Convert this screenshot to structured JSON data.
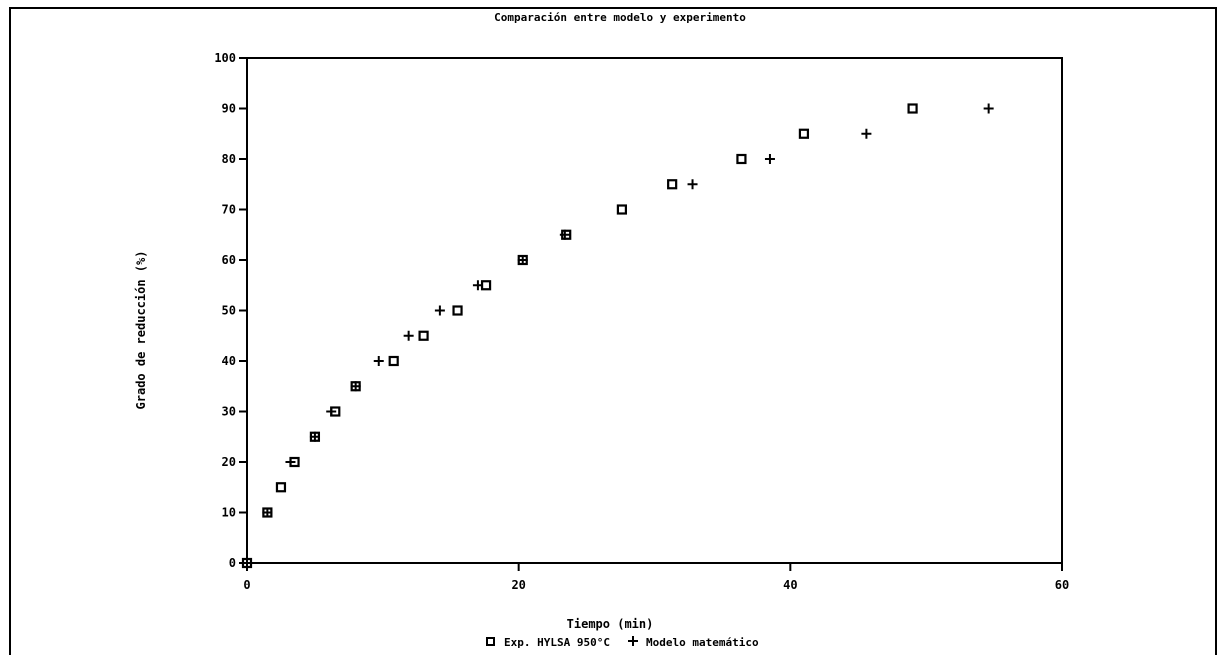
{
  "chart_data": {
    "type": "scatter",
    "title": "Comparación entre modelo y experimento",
    "xlabel": "Tiempo (min)",
    "ylabel": "Grado de reducción (%)",
    "xlim": [
      0,
      60
    ],
    "ylim": [
      0,
      100
    ],
    "xticks": [
      0,
      20,
      40,
      60
    ],
    "yticks": [
      0,
      10,
      20,
      30,
      40,
      50,
      60,
      70,
      80,
      90,
      100
    ],
    "xtick_labels": [
      "0",
      "20",
      "40",
      "60"
    ],
    "ytick_labels": [
      "0",
      "10",
      "20",
      "30",
      "40",
      "50",
      "60",
      "70",
      "80",
      "90",
      "100"
    ],
    "grid": false,
    "legend_position": "bottom",
    "series": [
      {
        "name": "Exp. HYLSA 950°C",
        "marker": "square",
        "x": [
          0,
          1.5,
          2.5,
          3.5,
          5.0,
          6.5,
          8.0,
          10.8,
          13.0,
          15.5,
          17.6,
          20.3,
          23.5,
          27.6,
          31.3,
          36.4,
          41.0,
          49.0
        ],
        "y": [
          0,
          10,
          15,
          20,
          25,
          30,
          35,
          40,
          45,
          50,
          55,
          60,
          65,
          70,
          75,
          80,
          85,
          90
        ]
      },
      {
        "name": "Modelo matemático",
        "marker": "plus",
        "x": [
          0,
          1.5,
          3.2,
          5.0,
          6.2,
          8.0,
          9.7,
          11.9,
          14.2,
          17.0,
          20.3,
          23.4,
          32.8,
          38.5,
          45.6,
          54.6
        ],
        "y": [
          0,
          10,
          20,
          25,
          30,
          35,
          40,
          45,
          50,
          55,
          60,
          65,
          75,
          80,
          85,
          90
        ]
      }
    ]
  }
}
